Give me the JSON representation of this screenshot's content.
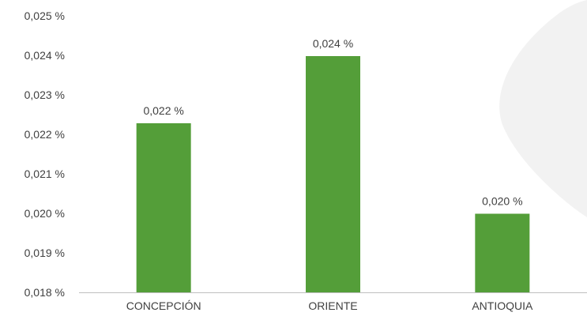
{
  "chart_data": {
    "type": "bar",
    "categories": [
      "CONCEPCIÓN",
      "ORIENTE",
      "ANTIOQUIA"
    ],
    "values": [
      0.02228,
      0.02398,
      0.01999
    ],
    "data_labels": [
      "0,022 %",
      "0,024 %",
      "0,020 %"
    ],
    "y_tick_labels": [
      "0,018 %",
      "0,019 %",
      "0,020 %",
      "0,021 %",
      "0,022 %",
      "0,023 %",
      "0,024 %",
      "0,025 %"
    ],
    "y_ticks": [
      0.018,
      0.019,
      0.02,
      0.021,
      0.022,
      0.023,
      0.024,
      0.025
    ],
    "ylim": [
      0.018,
      0.025
    ],
    "grid": false,
    "legend": "none",
    "colors": {
      "bar": "#549e39",
      "axis": "#bfbfbf",
      "text": "#404040",
      "watermark": "#f2f2f2"
    }
  }
}
